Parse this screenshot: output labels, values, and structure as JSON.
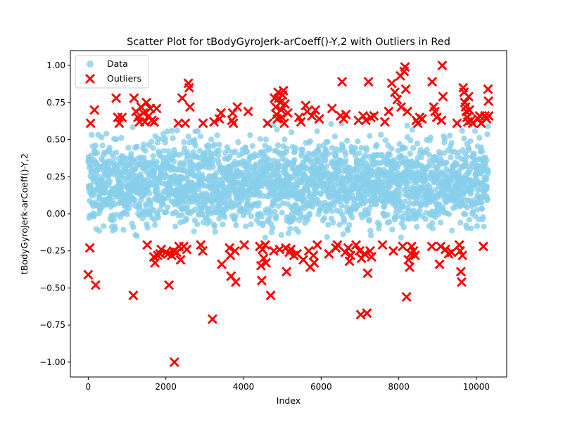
{
  "chart_data": {
    "type": "scatter",
    "title": "Scatter Plot for tBodyGyroJerk-arCoeff()-Y,2 with Outliers in Red",
    "xlabel": "Index",
    "ylabel": "tBodyGyroJerk-arCoeff()-Y,2",
    "xlim": [
      -460,
      10780
    ],
    "ylim": [
      -1.1,
      1.1
    ],
    "x_ticks": [
      0,
      2000,
      4000,
      6000,
      8000,
      10000
    ],
    "x_tick_labels": [
      "0",
      "2000",
      "4000",
      "6000",
      "8000",
      "10000"
    ],
    "y_ticks": [
      -1.0,
      -0.75,
      -0.5,
      -0.25,
      0.0,
      0.25,
      0.5,
      0.75,
      1.0
    ],
    "y_tick_labels": [
      "−1.00",
      "−0.75",
      "−0.50",
      "−0.25",
      "0.00",
      "0.25",
      "0.50",
      "0.75",
      "1.00"
    ],
    "grid": false,
    "legend_position": "top-left",
    "series": [
      {
        "name": "Data",
        "marker": "circle",
        "color": "#87ceeb",
        "description_density": "dense band of about 10,300 points roughly between -0.2 and 0.6",
        "band": {
          "x_start": 0,
          "x_end": 10299,
          "center": 0.21,
          "typical_low": -0.15,
          "typical_high": 0.58
        }
      },
      {
        "name": "Outliers",
        "marker": "x",
        "color": "#ff0000",
        "points": [
          [
            0,
            -0.41
          ],
          [
            40,
            -0.23
          ],
          [
            60,
            0.61
          ],
          [
            160,
            0.7
          ],
          [
            190,
            -0.48
          ],
          [
            720,
            0.78
          ],
          [
            760,
            0.65
          ],
          [
            800,
            0.61
          ],
          [
            870,
            0.65
          ],
          [
            1160,
            -0.55
          ],
          [
            1180,
            0.78
          ],
          [
            1230,
            0.69
          ],
          [
            1280,
            0.65
          ],
          [
            1320,
            0.62
          ],
          [
            1360,
            0.72
          ],
          [
            1420,
            0.68
          ],
          [
            1460,
            0.62
          ],
          [
            1500,
            0.75
          ],
          [
            1520,
            -0.21
          ],
          [
            1560,
            0.66
          ],
          [
            1600,
            0.71
          ],
          [
            1640,
            0.63
          ],
          [
            1690,
            -0.29
          ],
          [
            1700,
            0.62
          ],
          [
            1720,
            -0.33
          ],
          [
            1760,
            0.71
          ],
          [
            1790,
            -0.28
          ],
          [
            1850,
            -0.27
          ],
          [
            1880,
            -0.24
          ],
          [
            2000,
            -0.26
          ],
          [
            2060,
            -0.27
          ],
          [
            2080,
            -0.48
          ],
          [
            2150,
            -0.28
          ],
          [
            2200,
            -0.25
          ],
          [
            2220,
            -1.0
          ],
          [
            2280,
            -0.26
          ],
          [
            2320,
            0.61
          ],
          [
            2340,
            -0.22
          ],
          [
            2380,
            -0.31
          ],
          [
            2420,
            0.78
          ],
          [
            2460,
            -0.22
          ],
          [
            2500,
            0.61
          ],
          [
            2540,
            -0.24
          ],
          [
            2580,
            0.88
          ],
          [
            2600,
            0.85
          ],
          [
            2620,
            0.72
          ],
          [
            2900,
            -0.21
          ],
          [
            2950,
            -0.25
          ],
          [
            2960,
            0.61
          ],
          [
            3200,
            -0.71
          ],
          [
            3240,
            0.62
          ],
          [
            3380,
            0.64
          ],
          [
            3420,
            0.68
          ],
          [
            3440,
            -0.34
          ],
          [
            3640,
            -0.23
          ],
          [
            3660,
            -0.28
          ],
          [
            3680,
            -0.42
          ],
          [
            3700,
            0.63
          ],
          [
            3720,
            0.68
          ],
          [
            3740,
            0.61
          ],
          [
            3780,
            -0.25
          ],
          [
            3800,
            -0.46
          ],
          [
            3840,
            0.72
          ],
          [
            4020,
            -0.21
          ],
          [
            4120,
            0.69
          ],
          [
            4420,
            -0.22
          ],
          [
            4450,
            -0.35
          ],
          [
            4470,
            -0.45
          ],
          [
            4490,
            -0.24
          ],
          [
            4520,
            -0.3
          ],
          [
            4560,
            -0.21
          ],
          [
            4580,
            -0.33
          ],
          [
            4620,
            0.61
          ],
          [
            4700,
            -0.55
          ],
          [
            4780,
            -0.25
          ],
          [
            4800,
            0.78
          ],
          [
            4830,
            0.72
          ],
          [
            4850,
            0.67
          ],
          [
            4870,
            0.64
          ],
          [
            4890,
            0.82
          ],
          [
            4910,
            0.78
          ],
          [
            4930,
            -0.24
          ],
          [
            4950,
            0.75
          ],
          [
            4970,
            0.7
          ],
          [
            4990,
            0.65
          ],
          [
            5010,
            0.8
          ],
          [
            5030,
            0.83
          ],
          [
            5050,
            0.61
          ],
          [
            5070,
            0.74
          ],
          [
            5090,
            -0.23
          ],
          [
            5110,
            -0.39
          ],
          [
            5140,
            0.68
          ],
          [
            5180,
            -0.26
          ],
          [
            5220,
            -0.24
          ],
          [
            5300,
            -0.28
          ],
          [
            5380,
            -0.27
          ],
          [
            5430,
            0.65
          ],
          [
            5480,
            0.62
          ],
          [
            5540,
            -0.31
          ],
          [
            5600,
            0.73
          ],
          [
            5640,
            0.69
          ],
          [
            5680,
            -0.25
          ],
          [
            5720,
            -0.36
          ],
          [
            5760,
            0.66
          ],
          [
            5800,
            -0.28
          ],
          [
            5820,
            -0.33
          ],
          [
            5850,
            0.7
          ],
          [
            5900,
            -0.21
          ],
          [
            5950,
            0.64
          ],
          [
            6200,
            -0.27
          ],
          [
            6280,
            0.71
          ],
          [
            6380,
            -0.23
          ],
          [
            6420,
            -0.21
          ],
          [
            6500,
            0.66
          ],
          [
            6540,
            0.89
          ],
          [
            6580,
            0.64
          ],
          [
            6620,
            -0.26
          ],
          [
            6640,
            0.67
          ],
          [
            6700,
            -0.23
          ],
          [
            6730,
            -0.32
          ],
          [
            6760,
            -0.28
          ],
          [
            6900,
            -0.21
          ],
          [
            6960,
            0.63
          ],
          [
            6990,
            -0.25
          ],
          [
            7020,
            -0.68
          ],
          [
            7040,
            -0.3
          ],
          [
            7080,
            0.66
          ],
          [
            7120,
            -0.27
          ],
          [
            7150,
            0.63
          ],
          [
            7180,
            -0.67
          ],
          [
            7200,
            -0.4
          ],
          [
            7220,
            0.89
          ],
          [
            7260,
            -0.25
          ],
          [
            7280,
            0.65
          ],
          [
            7300,
            -0.29
          ],
          [
            7360,
            0.66
          ],
          [
            7580,
            -0.21
          ],
          [
            7640,
            0.62
          ],
          [
            7740,
            0.69
          ],
          [
            7820,
            0.88
          ],
          [
            7860,
            -0.25
          ],
          [
            7900,
            0.82
          ],
          [
            7960,
            0.77
          ],
          [
            8040,
            0.93
          ],
          [
            8060,
            0.72
          ],
          [
            8100,
            -0.22
          ],
          [
            8140,
            0.96
          ],
          [
            8160,
            0.99
          ],
          [
            8180,
            0.84
          ],
          [
            8200,
            -0.56
          ],
          [
            8220,
            0.69
          ],
          [
            8250,
            -0.31
          ],
          [
            8280,
            -0.36
          ],
          [
            8310,
            -0.27
          ],
          [
            8330,
            -0.22
          ],
          [
            8380,
            -0.25
          ],
          [
            8420,
            -0.28
          ],
          [
            8450,
            0.63
          ],
          [
            8490,
            0.61
          ],
          [
            8540,
            0.65
          ],
          [
            8600,
            0.64
          ],
          [
            8850,
            -0.22
          ],
          [
            8860,
            0.89
          ],
          [
            8900,
            0.72
          ],
          [
            8930,
            0.69
          ],
          [
            8980,
            0.65
          ],
          [
            9050,
            -0.34
          ],
          [
            9080,
            -0.22
          ],
          [
            9100,
            0.63
          ],
          [
            9120,
            1.0
          ],
          [
            9140,
            0.79
          ],
          [
            9200,
            -0.24
          ],
          [
            9280,
            -0.27
          ],
          [
            9360,
            -0.26
          ],
          [
            9500,
            0.61
          ],
          [
            9560,
            -0.21
          ],
          [
            9580,
            -0.25
          ],
          [
            9600,
            -0.39
          ],
          [
            9620,
            -0.46
          ],
          [
            9640,
            -0.28
          ],
          [
            9660,
            0.85
          ],
          [
            9680,
            0.82
          ],
          [
            9700,
            0.75
          ],
          [
            9720,
            0.72
          ],
          [
            9740,
            0.69
          ],
          [
            9760,
            0.65
          ],
          [
            9780,
            0.62
          ],
          [
            9800,
            0.79
          ],
          [
            9820,
            0.7
          ],
          [
            9860,
            0.63
          ],
          [
            9900,
            0.61
          ],
          [
            10040,
            0.64
          ],
          [
            10080,
            0.66
          ],
          [
            10120,
            0.61
          ],
          [
            10180,
            -0.22
          ],
          [
            10220,
            0.66
          ],
          [
            10260,
            0.64
          ],
          [
            10300,
            0.84
          ],
          [
            10310,
            0.76
          ],
          [
            10320,
            0.66
          ]
        ]
      }
    ]
  }
}
